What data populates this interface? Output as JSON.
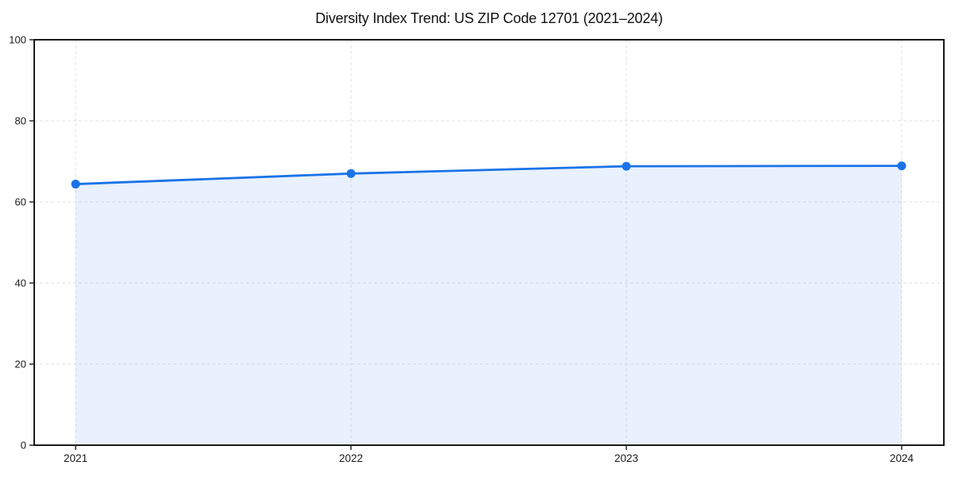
{
  "chart_data": {
    "type": "area",
    "title": "Diversity Index Trend: US ZIP Code 12701 (2021–2024)",
    "categories": [
      "2021",
      "2022",
      "2023",
      "2024"
    ],
    "series": [
      {
        "name": "Diversity Index",
        "values": [
          64.4,
          67.0,
          68.8,
          68.9
        ]
      }
    ],
    "xlabel": "",
    "ylabel": "",
    "ylim": [
      0,
      100
    ],
    "yticks": [
      0,
      20,
      40,
      60,
      80,
      100
    ],
    "grid": true,
    "legend_position": "none",
    "marker": "circle",
    "colors": {
      "line": "#1a73e8",
      "marker": "#1a73e8",
      "fill": "rgba(26,115,232,0.10)",
      "gridline": "#e0e0e0",
      "axis": "#1a1a1a",
      "title_text": "#111111",
      "tick_text": "#1a1a1a",
      "background": "#ffffff"
    }
  }
}
